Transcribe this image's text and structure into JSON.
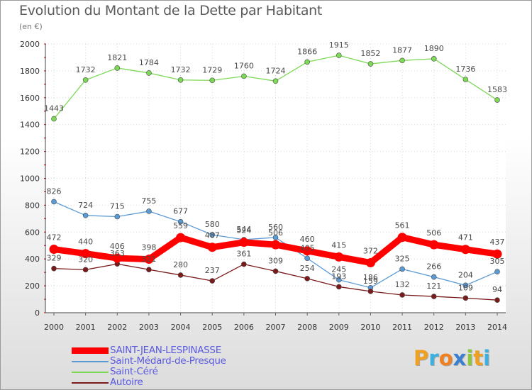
{
  "chart_data": {
    "type": "line",
    "title": "Evolution du Montant de la Dette par Habitant",
    "unit": "(en €)",
    "x": [
      "2000",
      "2001",
      "2002",
      "2003",
      "2004",
      "2005",
      "2006",
      "2007",
      "2008",
      "2009",
      "2010",
      "2011",
      "2012",
      "2013",
      "2014"
    ],
    "ylim": [
      0,
      2000
    ],
    "yticks": [
      "0",
      "200",
      "400",
      "600",
      "800",
      "1000",
      "1200",
      "1400",
      "1600",
      "1800",
      "2000"
    ],
    "grid": true,
    "legend_position": "bottom-left",
    "series": [
      {
        "name": "SAINT-JEAN-LESPINASSE",
        "color": "#ff0000",
        "values": [
          472,
          440,
          406,
          398,
          559,
          487,
          524,
          506,
          460,
          415,
          372,
          561,
          506,
          471,
          437
        ]
      },
      {
        "name": "Saint-Médard-de-Presque",
        "color": "#5b9bd5",
        "values": [
          826,
          724,
          715,
          755,
          677,
          580,
          544,
          560,
          405,
          245,
          186,
          325,
          266,
          204,
          305
        ]
      },
      {
        "name": "Saint-Céré",
        "color": "#7ed957",
        "values": [
          1443,
          1732,
          1821,
          1784,
          1732,
          1729,
          1760,
          1724,
          1866,
          1915,
          1852,
          1877,
          1890,
          1736,
          1583
        ]
      },
      {
        "name": "Autoire",
        "color": "#7a1a1a",
        "values": [
          329,
          320,
          363,
          321,
          280,
          237,
          361,
          309,
          254,
          193,
          159,
          132,
          121,
          109,
          94
        ]
      }
    ]
  },
  "logo": {
    "text": "Proxiti",
    "letters": [
      {
        "ch": "P",
        "color": "#f0a020"
      },
      {
        "ch": "r",
        "color": "#3cb0e0"
      },
      {
        "ch": "o",
        "color": "#f08020"
      },
      {
        "ch": "x",
        "color": "#3a7fd0"
      },
      {
        "ch": "i",
        "color": "#8cc83c"
      },
      {
        "ch": "t",
        "color": "#f0a020"
      },
      {
        "ch": "i",
        "color": "#3cb0e0"
      }
    ]
  }
}
